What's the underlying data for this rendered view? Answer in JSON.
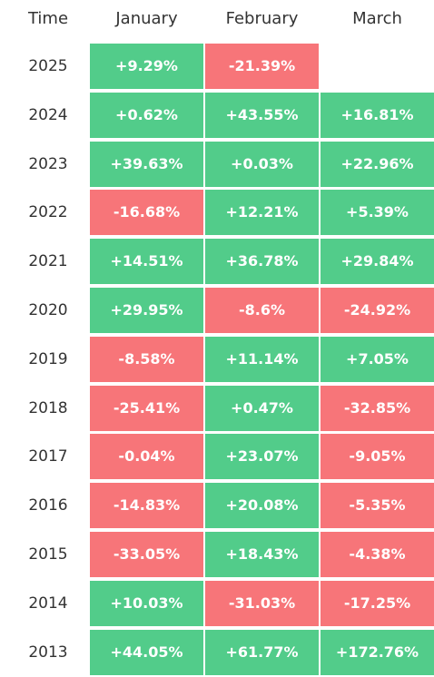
{
  "header": {
    "time_label": "Time",
    "months": [
      "January",
      "February",
      "March"
    ]
  },
  "colors": {
    "positive": "#52cc8a",
    "negative": "#f77579",
    "text": "#333333"
  },
  "rows": [
    {
      "year": "2025",
      "values": [
        "+9.29%",
        "-21.39%",
        ""
      ]
    },
    {
      "year": "2024",
      "values": [
        "+0.62%",
        "+43.55%",
        "+16.81%"
      ]
    },
    {
      "year": "2023",
      "values": [
        "+39.63%",
        "+0.03%",
        "+22.96%"
      ]
    },
    {
      "year": "2022",
      "values": [
        "-16.68%",
        "+12.21%",
        "+5.39%"
      ]
    },
    {
      "year": "2021",
      "values": [
        "+14.51%",
        "+36.78%",
        "+29.84%"
      ]
    },
    {
      "year": "2020",
      "values": [
        "+29.95%",
        "-8.6%",
        "-24.92%"
      ]
    },
    {
      "year": "2019",
      "values": [
        "-8.58%",
        "+11.14%",
        "+7.05%"
      ]
    },
    {
      "year": "2018",
      "values": [
        "-25.41%",
        "+0.47%",
        "-32.85%"
      ]
    },
    {
      "year": "2017",
      "values": [
        "-0.04%",
        "+23.07%",
        "-9.05%"
      ]
    },
    {
      "year": "2016",
      "values": [
        "-14.83%",
        "+20.08%",
        "-5.35%"
      ]
    },
    {
      "year": "2015",
      "values": [
        "-33.05%",
        "+18.43%",
        "-4.38%"
      ]
    },
    {
      "year": "2014",
      "values": [
        "+10.03%",
        "-31.03%",
        "-17.25%"
      ]
    },
    {
      "year": "2013",
      "values": [
        "+44.05%",
        "+61.77%",
        "+172.76%"
      ]
    }
  ]
}
